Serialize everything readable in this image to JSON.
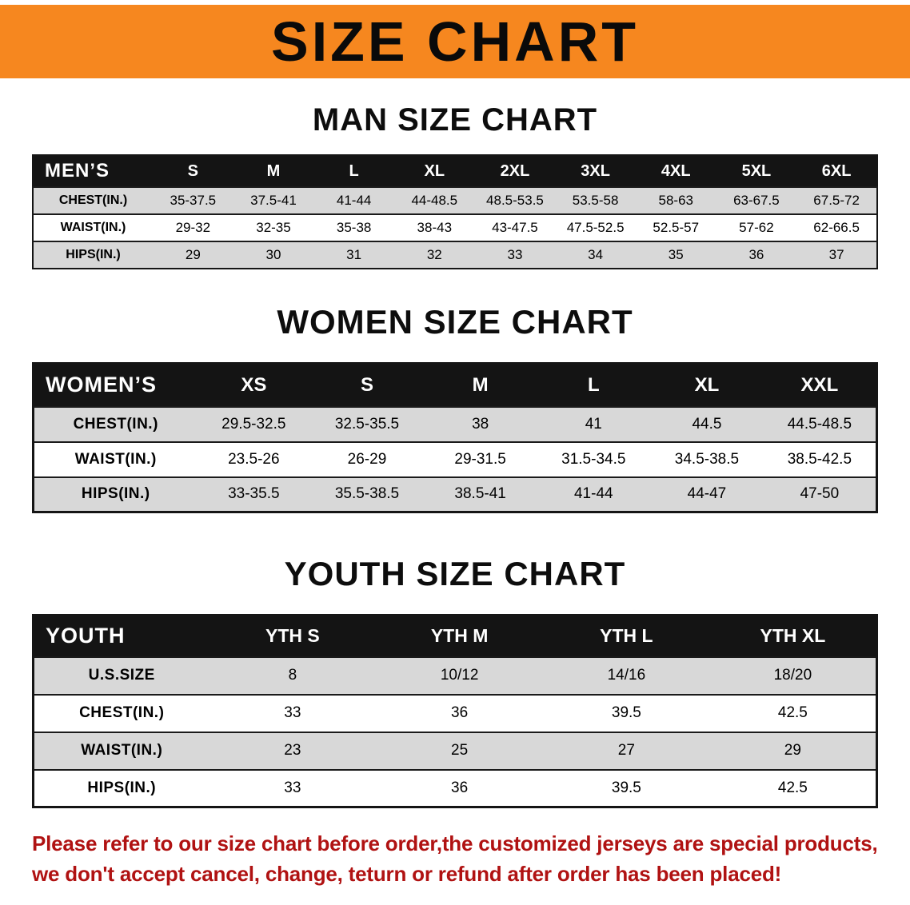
{
  "banner": {
    "title": "SIZE CHART"
  },
  "colors": {
    "banner_bg": "#f6871f",
    "header_bg": "#141414",
    "row_shade": "#d8d8d8",
    "footer_text": "#b01212"
  },
  "sections": {
    "men": {
      "heading": "MAN SIZE CHART",
      "table": {
        "header": [
          "MEN’S",
          "S",
          "M",
          "L",
          "XL",
          "2XL",
          "3XL",
          "4XL",
          "5XL",
          "6XL"
        ],
        "rows": [
          [
            "CHEST(IN.)",
            "35-37.5",
            "37.5-41",
            "41-44",
            "44-48.5",
            "48.5-53.5",
            "53.5-58",
            "58-63",
            "63-67.5",
            "67.5-72"
          ],
          [
            "WAIST(IN.)",
            "29-32",
            "32-35",
            "35-38",
            "38-43",
            "43-47.5",
            "47.5-52.5",
            "52.5-57",
            "57-62",
            "62-66.5"
          ],
          [
            "HIPS(IN.)",
            "29",
            "30",
            "31",
            "32",
            "33",
            "34",
            "35",
            "36",
            "37"
          ]
        ]
      }
    },
    "women": {
      "heading": "WOMEN SIZE CHART",
      "table": {
        "header": [
          "WOMEN’S",
          "XS",
          "S",
          "M",
          "L",
          "XL",
          "XXL"
        ],
        "rows": [
          [
            "CHEST(IN.)",
            "29.5-32.5",
            "32.5-35.5",
            "38",
            "41",
            "44.5",
            "44.5-48.5"
          ],
          [
            "WAIST(IN.)",
            "23.5-26",
            "26-29",
            "29-31.5",
            "31.5-34.5",
            "34.5-38.5",
            "38.5-42.5"
          ],
          [
            "HIPS(IN.)",
            "33-35.5",
            "35.5-38.5",
            "38.5-41",
            "41-44",
            "44-47",
            "47-50"
          ]
        ]
      }
    },
    "youth": {
      "heading": "YOUTH SIZE CHART",
      "table": {
        "header": [
          "YOUTH",
          "YTH S",
          "YTH M",
          "YTH L",
          "YTH XL"
        ],
        "rows": [
          [
            "U.S.SIZE",
            "8",
            "10/12",
            "14/16",
            "18/20"
          ],
          [
            "CHEST(IN.)",
            "33",
            "36",
            "39.5",
            "42.5"
          ],
          [
            "WAIST(IN.)",
            "23",
            "25",
            "27",
            "29"
          ],
          [
            "HIPS(IN.)",
            "33",
            "36",
            "39.5",
            "42.5"
          ]
        ]
      }
    }
  },
  "footer": {
    "line1": "Please refer to our size chart before order,the customized jerseys are special products,",
    "line2": "we don't accept cancel, change, teturn or refund after order has been placed!"
  }
}
